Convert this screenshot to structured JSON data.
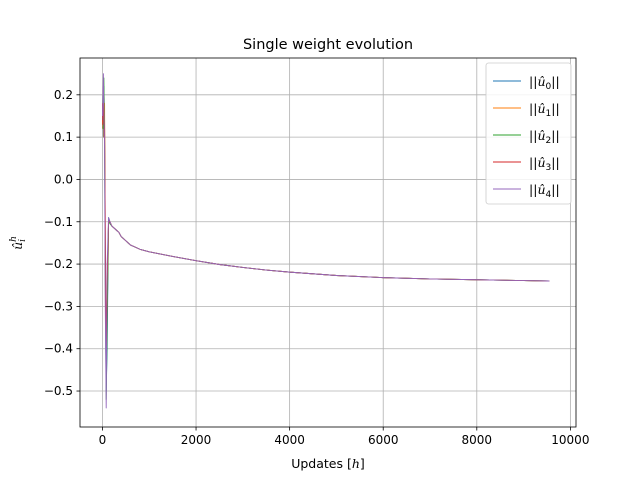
{
  "chart_data": {
    "type": "line",
    "title": "Single weight evolution",
    "xlabel": "Updates [h]",
    "ylabel": "û_i^h",
    "xlim": [
      -480,
      10120
    ],
    "ylim": [
      -0.585,
      0.287
    ],
    "xticks": [
      0,
      2000,
      4000,
      6000,
      8000,
      10000
    ],
    "yticks": [
      0.2,
      0.1,
      0.0,
      -0.1,
      -0.2,
      -0.3,
      -0.4,
      -0.5
    ],
    "xtick_labels": [
      "0",
      "2000",
      "4000",
      "6000",
      "8000",
      "10000"
    ],
    "ytick_labels": [
      "0.2",
      "0.1",
      "0.0",
      "−0.1",
      "−0.2",
      "−0.3",
      "−0.4",
      "−0.5"
    ],
    "grid": true,
    "legend_position": "top-right",
    "series": [
      {
        "name": "||û0||",
        "color": "#1f77b4",
        "x": [
          0,
          10,
          20,
          30,
          45,
          60,
          80,
          100,
          130,
          160,
          200,
          250,
          300,
          350,
          400,
          450,
          500,
          600,
          700,
          800,
          1000,
          1500,
          2000,
          2500,
          3000,
          3500,
          4000,
          5000,
          6000,
          7000,
          8000,
          9000,
          9550
        ],
        "y": [
          0.12,
          0.18,
          0.1,
          0.22,
          0.14,
          -0.2,
          -0.5,
          -0.4,
          -0.09,
          -0.1,
          -0.11,
          -0.115,
          -0.12,
          -0.125,
          -0.135,
          -0.14,
          -0.145,
          -0.155,
          -0.16,
          -0.165,
          -0.171,
          -0.182,
          -0.192,
          -0.201,
          -0.208,
          -0.214,
          -0.219,
          -0.227,
          -0.232,
          -0.235,
          -0.237,
          -0.239,
          -0.24
        ]
      },
      {
        "name": "||û1||",
        "color": "#ff7f0e",
        "x": [
          0,
          10,
          20,
          30,
          45,
          60,
          80,
          100,
          130,
          160,
          200,
          250,
          300,
          350,
          400,
          450,
          500,
          600,
          700,
          800,
          1000,
          1500,
          2000,
          2500,
          3000,
          3500,
          4000,
          5000,
          6000,
          7000,
          8000,
          9000,
          9550
        ],
        "y": [
          0.14,
          0.12,
          0.2,
          0.1,
          0.18,
          -0.15,
          -0.45,
          -0.3,
          -0.1,
          -0.1,
          -0.11,
          -0.115,
          -0.12,
          -0.125,
          -0.135,
          -0.14,
          -0.145,
          -0.155,
          -0.16,
          -0.165,
          -0.171,
          -0.182,
          -0.192,
          -0.201,
          -0.208,
          -0.214,
          -0.219,
          -0.227,
          -0.232,
          -0.235,
          -0.237,
          -0.239,
          -0.24
        ]
      },
      {
        "name": "||û2||",
        "color": "#2ca02c",
        "x": [
          0,
          10,
          20,
          30,
          45,
          60,
          80,
          100,
          130,
          160,
          200,
          250,
          300,
          350,
          400,
          450,
          500,
          600,
          700,
          800,
          1000,
          1500,
          2000,
          2500,
          3000,
          3500,
          4000,
          5000,
          6000,
          7000,
          8000,
          9000,
          9550
        ],
        "y": [
          0.16,
          0.2,
          0.12,
          0.24,
          0.1,
          -0.25,
          -0.52,
          -0.35,
          -0.095,
          -0.105,
          -0.11,
          -0.115,
          -0.12,
          -0.125,
          -0.135,
          -0.14,
          -0.145,
          -0.155,
          -0.16,
          -0.165,
          -0.171,
          -0.182,
          -0.192,
          -0.201,
          -0.208,
          -0.214,
          -0.219,
          -0.227,
          -0.232,
          -0.235,
          -0.237,
          -0.239,
          -0.24
        ]
      },
      {
        "name": "||û3||",
        "color": "#d62728",
        "x": [
          0,
          10,
          20,
          30,
          45,
          60,
          80,
          100,
          130,
          160,
          200,
          250,
          300,
          350,
          400,
          450,
          500,
          600,
          700,
          800,
          1000,
          1500,
          2000,
          2500,
          3000,
          3500,
          4000,
          5000,
          6000,
          7000,
          8000,
          9000,
          9550
        ],
        "y": [
          0.18,
          0.13,
          0.22,
          0.15,
          0.12,
          -0.1,
          -0.4,
          -0.25,
          -0.1,
          -0.1,
          -0.11,
          -0.115,
          -0.12,
          -0.125,
          -0.135,
          -0.14,
          -0.145,
          -0.155,
          -0.16,
          -0.165,
          -0.171,
          -0.182,
          -0.192,
          -0.201,
          -0.208,
          -0.214,
          -0.219,
          -0.227,
          -0.232,
          -0.235,
          -0.237,
          -0.239,
          -0.24
        ]
      },
      {
        "name": "||û4||",
        "color": "#9467bd",
        "x": [
          0,
          10,
          20,
          30,
          45,
          60,
          80,
          100,
          130,
          160,
          200,
          250,
          300,
          350,
          400,
          450,
          500,
          600,
          700,
          800,
          1000,
          1500,
          2000,
          2500,
          3000,
          3500,
          4000,
          5000,
          6000,
          7000,
          8000,
          9000,
          9550
        ],
        "y": [
          0.15,
          0.19,
          0.25,
          0.16,
          0.08,
          -0.3,
          -0.54,
          -0.2,
          -0.09,
          -0.1,
          -0.11,
          -0.115,
          -0.12,
          -0.125,
          -0.135,
          -0.14,
          -0.145,
          -0.155,
          -0.16,
          -0.165,
          -0.171,
          -0.182,
          -0.192,
          -0.201,
          -0.208,
          -0.214,
          -0.219,
          -0.227,
          -0.232,
          -0.235,
          -0.237,
          -0.239,
          -0.24
        ]
      }
    ]
  }
}
